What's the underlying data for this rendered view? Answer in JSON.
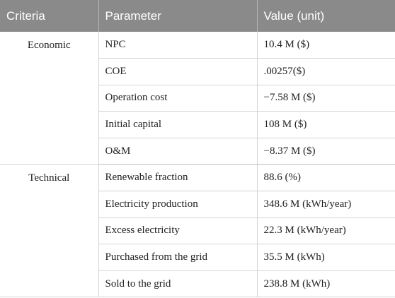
{
  "table": {
    "headers": [
      "Criteria",
      "Parameter",
      "Value (unit)"
    ],
    "groups": [
      {
        "criteria": "Economic",
        "rows": [
          {
            "parameter": "NPC",
            "value": "10.4 M ($)"
          },
          {
            "parameter": "COE",
            "value": ".00257($)"
          },
          {
            "parameter": "Operation cost",
            "value": "−7.58 M ($)"
          },
          {
            "parameter": "Initial capital",
            "value": "108 M ($)"
          },
          {
            "parameter": "O&M",
            "value": "−8.37 M ($)"
          }
        ]
      },
      {
        "criteria": "Technical",
        "rows": [
          {
            "parameter": "Renewable fraction",
            "value": "88.6 (%)"
          },
          {
            "parameter": "Electricity production",
            "value": "348.6 M (kWh/year)"
          },
          {
            "parameter": "Excess electricity",
            "value": "22.3 M (kWh/year)"
          },
          {
            "parameter": "Purchased from the grid",
            "value": "35.5 M (kWh)"
          },
          {
            "parameter": "Sold to the grid",
            "value": "238.8 M (kWh)"
          }
        ]
      }
    ]
  }
}
